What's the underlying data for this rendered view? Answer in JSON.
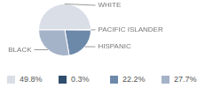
{
  "chart_data": {
    "type": "pie",
    "categories": [
      "WHITE",
      "PACIFIC ISLANDER",
      "HISPANIC",
      "BLACK"
    ],
    "values": [
      49.8,
      0.3,
      22.2,
      27.7
    ],
    "value_labels": [
      "49.8%",
      "0.3%",
      "22.2%",
      "27.7%"
    ],
    "colors": [
      "#d9dee7",
      "#2f4d6c",
      "#6d89aa",
      "#a5b3c8"
    ],
    "legend": "bottom"
  }
}
